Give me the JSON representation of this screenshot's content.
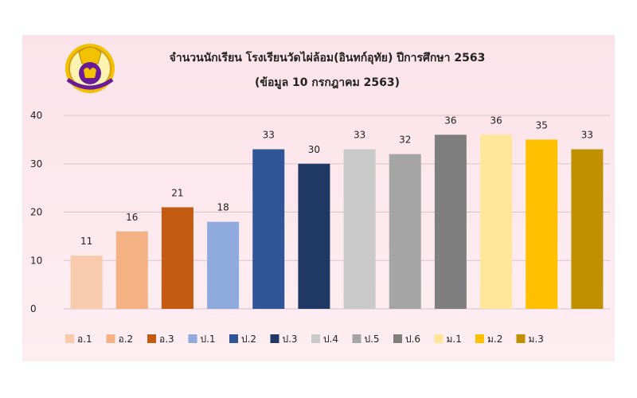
{
  "chart_data": {
    "type": "bar",
    "title": "จำนวนนักเรียน โรงเรียนวัดไผ่ล้อม(อินทก์อุทัย) ปีการศึกษา 2563",
    "subtitle": "(ข้อมูล 10 กรกฎาคม 2563)",
    "categories": [
      "อ.1",
      "อ.2",
      "อ.3",
      "ป.1",
      "ป.2",
      "ป.3",
      "ป.4",
      "ป.5",
      "ป.6",
      "ม.1",
      "ม.2",
      "ม.3"
    ],
    "values": [
      11,
      16,
      21,
      18,
      33,
      30,
      33,
      32,
      36,
      36,
      35,
      33
    ],
    "colors": [
      "#f8cbad",
      "#f4b183",
      "#c55a11",
      "#8faadc",
      "#2f5597",
      "#1f3864",
      "#c9c9c9",
      "#a5a5a5",
      "#7f7f7f",
      "#ffe699",
      "#ffc000",
      "#bf9000"
    ],
    "ylim": [
      0,
      40
    ],
    "yticks": [
      0,
      10,
      20,
      30,
      40
    ],
    "grid": true,
    "legend_position": "bottom",
    "data_labels": true
  },
  "logo": {
    "name": "school-logo-icon",
    "colors": {
      "outer": "#f2c200",
      "inner": "#6a1b9a",
      "accent": "#d4a017"
    }
  }
}
